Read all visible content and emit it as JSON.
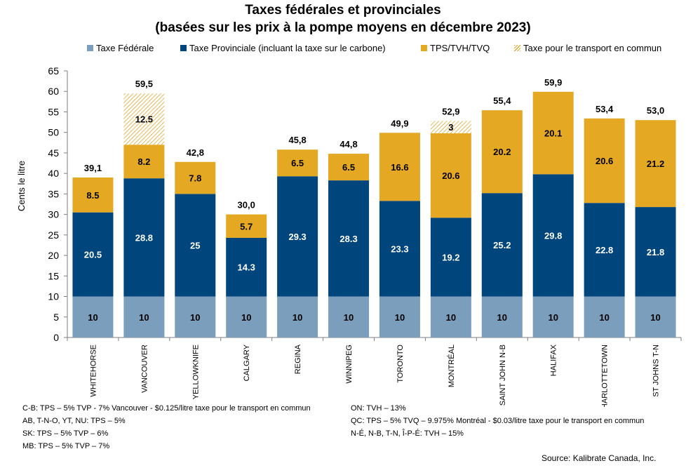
{
  "title": "Taxes fédérales et provinciales",
  "subtitle": "(basées sur les prix à la pompe moyens en décembre 2023)",
  "legend": [
    {
      "label": "Taxe Fédérale",
      "color": "#7a9ebb"
    },
    {
      "label": "Taxe Provinciale (incluant la taxe sur le carbone)",
      "color": "#00457c"
    },
    {
      "label": "TPS/TVH/TVQ",
      "color": "#e5a823"
    },
    {
      "label": "Taxe pour le transport en commun",
      "color": "#d9aa2e",
      "pattern": "hatch"
    }
  ],
  "notes_left": [
    "C-B:  TPS – 5% TVP - 7%  Vancouver - $0.125/litre taxe pour le transport en commun",
    "AB, T-N-O, YT, NU:   TPS – 5%",
    "SK:  TPS – 5% TVP – 6%",
    "MB:  TPS – 5% TVP – 7%"
  ],
  "notes_right": [
    "ON:    TVH – 13%",
    "QC:    TPS – 5%  TVQ – 9.975% Montréal - $0.03/litre taxe pour le transport en commun",
    "N-É, N-B, T-N,  Î-P-É:  TVH – 15%"
  ],
  "source": "Source:  Kalibrate Canada, Inc.",
  "chart_data": {
    "type": "bar",
    "stacked": true,
    "title": "Taxes fédérales et provinciales",
    "subtitle": "(basées sur les prix à la pompe moyens en décembre 2023)",
    "ylabel": "Cents le litre",
    "xlabel": "",
    "ylim": [
      0,
      65
    ],
    "yticks": [
      "0",
      "5",
      "10",
      "15",
      "20",
      "25",
      "30",
      "35",
      "40",
      "45",
      "50",
      "55",
      "60",
      "65"
    ],
    "legend_position": "top",
    "grid": false,
    "categories": [
      "WHITEHORSE",
      "VANCOUVER",
      "YELLOWKNIFE",
      "CALGARY",
      "REGINA",
      "WINNIPEG",
      "TORONTO",
      "MONTRÉAL",
      "SAINT JOHN N-B",
      "HALIFAX",
      "CHARLOTTETOWN",
      "ST JOHNS T-N"
    ],
    "series": [
      {
        "name": "Taxe Fédérale",
        "color": "#7a9ebb",
        "text_color": "#000000",
        "values": [
          10,
          10,
          10,
          10,
          10,
          10,
          10,
          10,
          10,
          10,
          10,
          10
        ],
        "labels": [
          "10",
          "10",
          "10",
          "10",
          "10",
          "10",
          "10",
          "10",
          "10",
          "10",
          "10",
          "10"
        ]
      },
      {
        "name": "Taxe Provinciale (incluant la taxe sur le carbone)",
        "color": "#00457c",
        "text_color": "#ffffff",
        "values": [
          20.5,
          28.8,
          25,
          14.3,
          29.3,
          28.3,
          23.3,
          19.2,
          25.2,
          29.8,
          22.8,
          21.8
        ],
        "labels": [
          "20.5",
          "28.8",
          "25",
          "14.3",
          "29.3",
          "28.3",
          "23.3",
          "19.2",
          "25.2",
          "29.8",
          "22.8",
          "21.8"
        ]
      },
      {
        "name": "TPS/TVH/TVQ",
        "color": "#e5a823",
        "text_color": "#000000",
        "values": [
          8.5,
          8.2,
          7.8,
          5.7,
          6.5,
          6.5,
          16.6,
          20.6,
          20.2,
          20.1,
          20.6,
          21.2
        ],
        "labels": [
          "8.5",
          "8.2",
          "7.8",
          "5.7",
          "6.5",
          "6.5",
          "16.6",
          "20.6",
          "20.2",
          "20.1",
          "20.6",
          "21.2"
        ]
      },
      {
        "name": "Taxe pour le transport en commun",
        "color": "#d9aa2e",
        "text_color": "#000000",
        "pattern": "hatch",
        "values": [
          0,
          12.5,
          0,
          0,
          0,
          0,
          0,
          3,
          0,
          0,
          0,
          0
        ],
        "labels": [
          "",
          "12.5",
          "",
          "",
          "",
          "",
          "",
          "3",
          "",
          "",
          "",
          ""
        ]
      }
    ],
    "totals": [
      "39,1",
      "59,5",
      "42,8",
      "30,0",
      "45,8",
      "44,8",
      "49,9",
      "52,9",
      "55,4",
      "59,9",
      "53,4",
      "53,0"
    ]
  }
}
